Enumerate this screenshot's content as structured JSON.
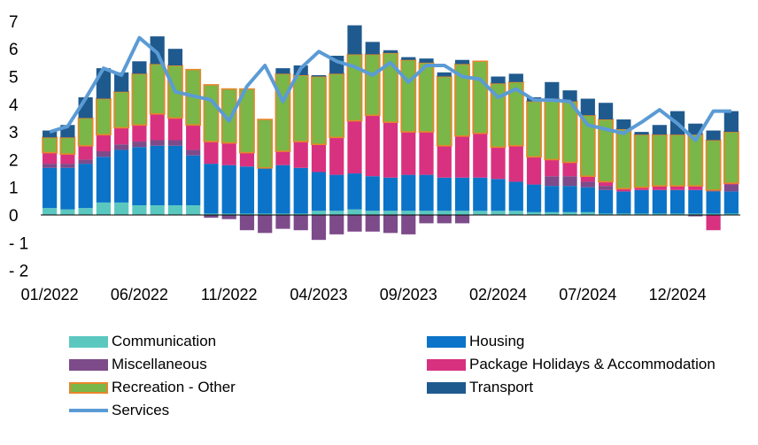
{
  "chart_data": {
    "type": "bar",
    "stacked": true,
    "title": "",
    "xlabel": "",
    "ylabel": "",
    "ylim": [
      -2,
      7
    ],
    "yticks": [
      -2,
      -1,
      0,
      1,
      2,
      3,
      4,
      5,
      6,
      7
    ],
    "grid": false,
    "legend_position": "bottom",
    "x_tick_labels": [
      "01/2022",
      "06/2022",
      "11/2022",
      "04/2023",
      "09/2023",
      "02/2024",
      "07/2024",
      "12/2024"
    ],
    "categories": [
      "01/2022",
      "02/2022",
      "03/2022",
      "04/2022",
      "05/2022",
      "06/2022",
      "07/2022",
      "08/2022",
      "09/2022",
      "10/2022",
      "11/2022",
      "12/2022",
      "01/2023",
      "02/2023",
      "03/2023",
      "04/2023",
      "05/2023",
      "06/2023",
      "07/2023",
      "08/2023",
      "09/2023",
      "10/2023",
      "11/2023",
      "12/2023",
      "01/2024",
      "02/2024",
      "03/2024",
      "04/2024",
      "05/2024",
      "06/2024",
      "07/2024",
      "08/2024",
      "09/2024",
      "10/2024",
      "11/2024",
      "12/2024",
      "01/2025",
      "02/2025",
      "03/2025"
    ],
    "series": [
      {
        "name": "Communication",
        "color": "#5bc8c0",
        "values": [
          0.25,
          0.2,
          0.25,
          0.45,
          0.45,
          0.35,
          0.35,
          0.35,
          0.35,
          0.05,
          0.05,
          0.05,
          0.05,
          0.05,
          0.05,
          0.15,
          0.15,
          0.2,
          0.15,
          0.15,
          0.15,
          0.15,
          0.15,
          0.15,
          0.15,
          0.15,
          0.15,
          0.1,
          0.1,
          0.1,
          0.1,
          0.05,
          0.05,
          0.05,
          0.05,
          0.05,
          0.05,
          0.05,
          0.05
        ]
      },
      {
        "name": "Housing",
        "color": "#0b74c8",
        "values": [
          1.45,
          1.5,
          1.6,
          1.65,
          1.9,
          2.1,
          2.15,
          2.15,
          1.8,
          1.8,
          1.75,
          1.7,
          1.65,
          1.75,
          1.65,
          1.4,
          1.3,
          1.3,
          1.25,
          1.2,
          1.3,
          1.3,
          1.2,
          1.2,
          1.2,
          1.15,
          1.05,
          1.0,
          0.95,
          0.95,
          0.9,
          0.85,
          0.8,
          0.85,
          0.85,
          0.85,
          0.85,
          0.8,
          0.8
        ]
      },
      {
        "name": "Miscellaneous",
        "color": "#7d4b8a",
        "values": [
          0.15,
          0.15,
          0.15,
          0.2,
          0.2,
          0.2,
          0.2,
          0.2,
          0.2,
          -0.1,
          -0.15,
          -0.55,
          -0.65,
          -0.5,
          -0.55,
          -0.9,
          -0.7,
          -0.6,
          -0.6,
          -0.65,
          -0.7,
          -0.3,
          -0.3,
          -0.3,
          0.0,
          0.0,
          0.0,
          0.0,
          0.35,
          0.35,
          0.2,
          0.15,
          0.0,
          0.0,
          0.0,
          0.0,
          -0.05,
          0.05,
          0.25
        ]
      },
      {
        "name": "Package Holidays & Accommodation",
        "color": "#d8317f",
        "values": [
          0.4,
          0.35,
          0.5,
          0.6,
          0.6,
          0.6,
          0.95,
          0.8,
          0.9,
          0.8,
          0.8,
          0.5,
          0.0,
          0.5,
          0.95,
          1.0,
          1.35,
          1.9,
          2.2,
          2.0,
          1.55,
          1.55,
          1.15,
          1.5,
          1.6,
          1.15,
          1.3,
          1.0,
          0.6,
          0.5,
          0.2,
          0.15,
          0.1,
          0.1,
          0.15,
          0.15,
          0.15,
          -0.55,
          0.05
        ]
      },
      {
        "name": "Recreation - Other",
        "color": "#7ab648",
        "values": [
          0.55,
          0.6,
          1.0,
          1.3,
          1.3,
          1.85,
          1.8,
          1.9,
          2.0,
          2.05,
          1.95,
          2.3,
          1.75,
          2.8,
          2.4,
          2.45,
          2.3,
          2.4,
          2.2,
          2.5,
          2.6,
          2.5,
          2.5,
          2.6,
          2.6,
          2.3,
          2.3,
          2.0,
          2.2,
          2.2,
          2.2,
          2.25,
          2.15,
          1.9,
          1.85,
          1.85,
          1.85,
          1.8,
          1.85
        ]
      },
      {
        "name": "Transport",
        "color": "#1f5a8e",
        "values": [
          0.25,
          0.45,
          0.75,
          1.1,
          0.7,
          0.45,
          1.0,
          0.6,
          0.0,
          0.0,
          0.0,
          0.0,
          0.0,
          0.2,
          0.35,
          0.05,
          0.65,
          1.05,
          0.45,
          0.1,
          0.1,
          0.15,
          0.15,
          0.15,
          0.0,
          0.25,
          0.3,
          0.15,
          0.6,
          0.4,
          0.6,
          0.6,
          0.35,
          0.1,
          0.35,
          0.85,
          0.4,
          0.35,
          0.75
        ]
      },
      {
        "name": "Services",
        "color": "#5b9bd5",
        "type": "line",
        "values": [
          3.0,
          3.2,
          4.2,
          5.3,
          5.05,
          6.4,
          5.85,
          4.45,
          4.3,
          4.15,
          3.4,
          4.65,
          5.4,
          4.1,
          5.3,
          5.9,
          5.55,
          5.35,
          5.05,
          5.5,
          4.8,
          5.4,
          5.4,
          5.0,
          4.9,
          4.25,
          4.55,
          4.15,
          4.15,
          4.1,
          3.25,
          3.1,
          2.95,
          3.35,
          3.8,
          3.3,
          2.7,
          3.75,
          3.75
        ]
      }
    ]
  }
}
